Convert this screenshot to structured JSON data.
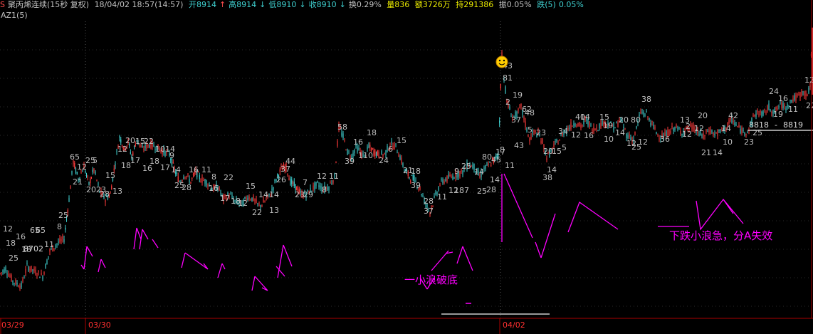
{
  "header": {
    "logo_letter": "S",
    "title": "聚丙烯连续(15秒 复权)",
    "datetime": "18/04/02 18:57(14:57)",
    "open": "开8914",
    "up1": "↑",
    "high": "高8914",
    "down1": "↓",
    "low": "低8910",
    "down2": "↓",
    "close": "收8910",
    "down3": "↓",
    "turnover": "换0.29%",
    "volume": "量836",
    "amount": "额3726万",
    "hold": "持291386",
    "amplitude": "振0.05%",
    "fall_label": "跌(5)",
    "fall_value": "0.05%"
  },
  "indicator": "AZ1(5)",
  "dates": [
    "03/29",
    "03/30",
    "04/02"
  ],
  "annotations": {
    "note1": "一小浪破底",
    "note2": "下跌小浪急，分A失效",
    "price_box_left": "8818",
    "price_box_right": "8819",
    "low_label": "8702"
  },
  "colors": {
    "up": "#ff3b3b",
    "down": "#3fd0d0",
    "label": "#bfbfbf",
    "annot": "#ff00ff",
    "grid": "#555555"
  },
  "chart_data": {
    "type": "candlestick",
    "ylim": [
      8690,
      8925
    ],
    "x_tick_labels": [
      "03/29",
      "03/30",
      "04/02"
    ],
    "price_path": [
      [
        0,
        8722
      ],
      [
        8,
        8726
      ],
      [
        18,
        8716
      ],
      [
        30,
        8712
      ],
      [
        38,
        8728
      ],
      [
        48,
        8724
      ],
      [
        60,
        8720
      ],
      [
        70,
        8740
      ],
      [
        80,
        8746
      ],
      [
        90,
        8750
      ],
      [
        97,
        8782
      ],
      [
        103,
        8812
      ],
      [
        110,
        8798
      ],
      [
        118,
        8808
      ],
      [
        125,
        8794
      ],
      [
        132,
        8806
      ],
      [
        140,
        8788
      ],
      [
        148,
        8782
      ],
      [
        155,
        8786
      ],
      [
        162,
        8812
      ],
      [
        168,
        8832
      ],
      [
        175,
        8822
      ],
      [
        180,
        8828
      ],
      [
        185,
        8816
      ],
      [
        192,
        8830
      ],
      [
        200,
        8822
      ],
      [
        210,
        8826
      ],
      [
        220,
        8824
      ],
      [
        230,
        8820
      ],
      [
        238,
        8818
      ],
      [
        245,
        8806
      ],
      [
        252,
        8796
      ],
      [
        260,
        8802
      ],
      [
        268,
        8796
      ],
      [
        275,
        8804
      ],
      [
        282,
        8798
      ],
      [
        290,
        8796
      ],
      [
        298,
        8790
      ],
      [
        306,
        8792
      ],
      [
        314,
        8782
      ],
      [
        322,
        8786
      ],
      [
        330,
        8780
      ],
      [
        340,
        8778
      ],
      [
        348,
        8784
      ],
      [
        356,
        8782
      ],
      [
        364,
        8776
      ],
      [
        372,
        8780
      ],
      [
        380,
        8786
      ],
      [
        388,
        8798
      ],
      [
        395,
        8806
      ],
      [
        402,
        8808
      ],
      [
        408,
        8796
      ],
      [
        415,
        8792
      ],
      [
        422,
        8786
      ],
      [
        430,
        8786
      ],
      [
        438,
        8790
      ],
      [
        446,
        8794
      ],
      [
        454,
        8790
      ],
      [
        462,
        8792
      ],
      [
        470,
        8800
      ],
      [
        476,
        8840
      ],
      [
        482,
        8832
      ],
      [
        488,
        8820
      ],
      [
        494,
        8816
      ],
      [
        500,
        8824
      ],
      [
        506,
        8820
      ],
      [
        512,
        8816
      ],
      [
        518,
        8824
      ],
      [
        525,
        8820
      ],
      [
        532,
        8818
      ],
      [
        540,
        8818
      ],
      [
        548,
        8826
      ],
      [
        556,
        8824
      ],
      [
        562,
        8816
      ],
      [
        568,
        8806
      ],
      [
        575,
        8800
      ],
      [
        582,
        8798
      ],
      [
        590,
        8790
      ],
      [
        598,
        8778
      ],
      [
        604,
        8772
      ],
      [
        610,
        8782
      ],
      [
        618,
        8794
      ],
      [
        626,
        8798
      ],
      [
        634,
        8800
      ],
      [
        642,
        8802
      ],
      [
        650,
        8804
      ],
      [
        658,
        8810
      ],
      [
        666,
        8808
      ],
      [
        674,
        8800
      ],
      [
        680,
        8806
      ],
      [
        688,
        8810
      ],
      [
        695,
        8814
      ],
      [
        700,
        8818
      ],
      [
        705,
        8900
      ],
      [
        708,
        8880
      ],
      [
        712,
        8860
      ],
      [
        716,
        8854
      ],
      [
        720,
        8848
      ],
      [
        726,
        8850
      ],
      [
        732,
        8856
      ],
      [
        738,
        8842
      ],
      [
        744,
        8830
      ],
      [
        750,
        8836
      ],
      [
        756,
        8834
      ],
      [
        762,
        8828
      ],
      [
        768,
        8816
      ],
      [
        774,
        8820
      ],
      [
        780,
        8826
      ],
      [
        786,
        8830
      ],
      [
        792,
        8836
      ],
      [
        800,
        8840
      ],
      [
        808,
        8844
      ],
      [
        816,
        8840
      ],
      [
        824,
        8846
      ],
      [
        832,
        8838
      ],
      [
        840,
        8840
      ],
      [
        848,
        8844
      ],
      [
        856,
        8842
      ],
      [
        864,
        8840
      ],
      [
        872,
        8846
      ],
      [
        880,
        8834
      ],
      [
        890,
        8830
      ],
      [
        900,
        8852
      ],
      [
        908,
        8850
      ],
      [
        916,
        8842
      ],
      [
        924,
        8834
      ],
      [
        932,
        8832
      ],
      [
        940,
        8836
      ],
      [
        948,
        8840
      ],
      [
        956,
        8836
      ],
      [
        964,
        8838
      ],
      [
        972,
        8840
      ],
      [
        980,
        8836
      ],
      [
        988,
        8832
      ],
      [
        996,
        8838
      ],
      [
        1004,
        8834
      ],
      [
        1012,
        8836
      ],
      [
        1020,
        8840
      ],
      [
        1028,
        8846
      ],
      [
        1036,
        8840
      ],
      [
        1044,
        8836
      ],
      [
        1052,
        8838
      ],
      [
        1058,
        8848
      ],
      [
        1064,
        8852
      ],
      [
        1072,
        8850
      ],
      [
        1080,
        8856
      ],
      [
        1088,
        8852
      ],
      [
        1096,
        8858
      ],
      [
        1104,
        8856
      ],
      [
        1112,
        8862
      ],
      [
        1120,
        8864
      ],
      [
        1128,
        8868
      ],
      [
        1134,
        8866
      ],
      [
        1138,
        8872
      ],
      [
        1141,
        8920
      ]
    ],
    "wave_labels": [
      [
        "12",
        4,
        325
      ],
      [
        "18",
        8,
        345
      ],
      [
        "25",
        12,
        366
      ],
      [
        "16",
        22,
        336
      ],
      [
        "18",
        30,
        354
      ],
      [
        "65",
        42,
        327
      ],
      [
        "65",
        50,
        327
      ],
      [
        "11",
        62,
        347
      ],
      [
        "8",
        80,
        322
      ],
      [
        "25",
        82,
        306
      ],
      [
        "65",
        98,
        224
      ],
      [
        "21",
        102,
        259
      ],
      [
        "12",
        108,
        238
      ],
      [
        "25",
        120,
        229
      ],
      [
        "5",
        130,
        229
      ],
      [
        "2023",
        121,
        270
      ],
      [
        "28",
        140,
        276
      ],
      [
        "15",
        148,
        250
      ],
      [
        "13",
        158,
        272
      ],
      [
        "20",
        176,
        201
      ],
      [
        "15",
        190,
        202
      ],
      [
        "22",
        202,
        202
      ],
      [
        "12",
        165,
        213
      ],
      [
        "17",
        183,
        229
      ],
      [
        "18",
        170,
        236
      ],
      [
        "18",
        210,
        230
      ],
      [
        "10",
        218,
        213
      ],
      [
        "14",
        232,
        213
      ],
      [
        "17",
        225,
        239
      ],
      [
        "16",
        200,
        240
      ],
      [
        "9",
        238,
        222
      ],
      [
        "14",
        240,
        242
      ],
      [
        "25",
        245,
        264
      ],
      [
        "16",
        265,
        242
      ],
      [
        "11",
        283,
        242
      ],
      [
        "28",
        255,
        267
      ],
      [
        "16",
        293,
        268
      ],
      [
        "8",
        297,
        252
      ],
      [
        "22",
        314,
        253
      ],
      [
        "17",
        309,
        282
      ],
      [
        "15",
        345,
        265
      ],
      [
        "12",
        334,
        289
      ],
      [
        "18",
        324,
        286
      ],
      [
        "22",
        354,
        302
      ],
      [
        "13",
        378,
        299
      ],
      [
        "14",
        363,
        277
      ],
      [
        "14",
        378,
        277
      ],
      [
        "26",
        388,
        256
      ],
      [
        "44",
        401,
        230
      ],
      [
        "37",
        394,
        241
      ],
      [
        "23",
        414,
        277
      ],
      [
        "7",
        425,
        260
      ],
      [
        "29",
        426,
        277
      ],
      [
        "12",
        445,
        251
      ],
      [
        "11",
        462,
        251
      ],
      [
        "8",
        452,
        270
      ],
      [
        "58",
        474,
        182
      ],
      [
        "39",
        484,
        230
      ],
      [
        "16",
        496,
        203
      ],
      [
        "18",
        515,
        190
      ],
      [
        "110",
        503,
        222
      ],
      [
        "24",
        532,
        229
      ],
      [
        "6",
        545,
        213
      ],
      [
        "15",
        557,
        201
      ],
      [
        "21",
        566,
        243
      ],
      [
        "18",
        577,
        244
      ],
      [
        "39",
        577,
        264
      ],
      [
        "37",
        595,
        300
      ],
      [
        "28",
        595,
        286
      ],
      [
        "11",
        614,
        280
      ],
      [
        "12",
        630,
        271
      ],
      [
        "187",
        638,
        271
      ],
      [
        "25",
        670,
        272
      ],
      [
        "28",
        683,
        270
      ],
      [
        "14",
        688,
        256
      ],
      [
        "9",
        638,
        244
      ],
      [
        "25",
        648,
        237
      ],
      [
        "14",
        666,
        245
      ],
      [
        "80",
        677,
        224
      ],
      [
        "45",
        690,
        228
      ],
      [
        "17",
        696,
        217
      ],
      [
        "8",
        702,
        214
      ],
      [
        "11",
        709,
        236
      ],
      [
        "43",
        706,
        96
      ],
      [
        "81",
        706,
        113
      ],
      [
        "2",
        710,
        147
      ],
      [
        "19",
        720,
        137
      ],
      [
        "62",
        733,
        157
      ],
      [
        "37",
        718,
        172
      ],
      [
        "48",
        737,
        162
      ],
      [
        "43",
        722,
        208
      ],
      [
        "5",
        741,
        186
      ],
      [
        "23",
        753,
        190
      ],
      [
        "20",
        763,
        216
      ],
      [
        "15",
        775,
        216
      ],
      [
        "14",
        768,
        242
      ],
      [
        "38",
        762,
        253
      ],
      [
        "5",
        789,
        211
      ],
      [
        "34",
        784,
        188
      ],
      [
        "12",
        802,
        193
      ],
      [
        "14",
        815,
        168
      ],
      [
        "16",
        820,
        194
      ],
      [
        "19",
        847,
        180
      ],
      [
        "10",
        848,
        199
      ],
      [
        "40",
        808,
        168
      ],
      [
        "15",
        842,
        168
      ],
      [
        "14",
        864,
        190
      ],
      [
        "12",
        880,
        205
      ],
      [
        "25",
        887,
        210
      ],
      [
        "20",
        869,
        172
      ],
      [
        "80",
        886,
        172
      ],
      [
        "38",
        901,
        143
      ],
      [
        "12",
        896,
        203
      ],
      [
        "36",
        927,
        199
      ],
      [
        "13",
        955,
        172
      ],
      [
        "12",
        958,
        192
      ],
      [
        "20",
        980,
        166
      ],
      [
        "2",
        963,
        181
      ],
      [
        "12",
        975,
        184
      ],
      [
        "21",
        985,
        218
      ],
      [
        "14",
        1001,
        218
      ],
      [
        "10",
        1015,
        203
      ],
      [
        "42",
        1023,
        166
      ],
      [
        "14",
        1013,
        184
      ],
      [
        "23",
        1045,
        203
      ],
      [
        "25",
        1057,
        190
      ],
      [
        "24",
        1080,
        132
      ],
      [
        "19",
        1086,
        164
      ],
      [
        "11",
        1107,
        157
      ],
      [
        "16",
        1093,
        142
      ],
      [
        "22",
        1132,
        152
      ],
      [
        "12",
        1130,
        116
      ]
    ]
  }
}
